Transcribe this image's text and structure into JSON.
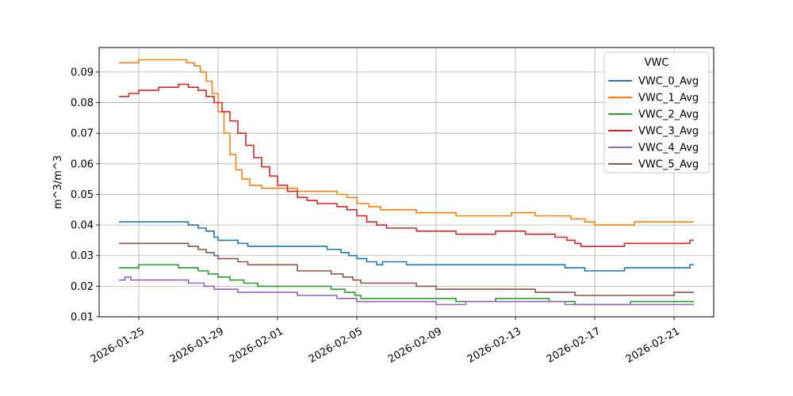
{
  "chart_data": {
    "type": "line",
    "title": "",
    "xlabel": "",
    "ylabel": "m^3/m^3",
    "xlim": [
      "2026-01-23",
      "2026-02-23"
    ],
    "ylim": [
      0.01,
      0.098
    ],
    "xticks": [
      "2026-01-25",
      "2026-01-29",
      "2026-02-01",
      "2026-02-05",
      "2026-02-09",
      "2026-02-13",
      "2026-02-17",
      "2026-02-21"
    ],
    "yticks": [
      0.01,
      0.02,
      0.03,
      0.04,
      0.05,
      0.06,
      0.07,
      0.08,
      0.09
    ],
    "ytick_labels": [
      "0.01",
      "0.02",
      "0.03",
      "0.04",
      "0.05",
      "0.06",
      "0.07",
      "0.08",
      "0.09"
    ],
    "grid": true,
    "legend": {
      "title": "VWC",
      "placement": "top-right"
    },
    "step": true,
    "series": [
      {
        "name": "VWC_0_Avg",
        "color": "#1f77b4",
        "points": [
          [
            "2026-01-24",
            0.041
          ],
          [
            "2026-01-27",
            0.041
          ],
          [
            "2026-01-27.5",
            0.04
          ],
          [
            "2026-01-28",
            0.039
          ],
          [
            "2026-01-28.4",
            0.038
          ],
          [
            "2026-01-28.8",
            0.036
          ],
          [
            "2026-01-29",
            0.035
          ],
          [
            "2026-01-30",
            0.034
          ],
          [
            "2026-01-30.5",
            0.033
          ],
          [
            "2026-02-03.5",
            0.032
          ],
          [
            "2026-02-04.2",
            0.031
          ],
          [
            "2026-02-04.6",
            0.03
          ],
          [
            "2026-02-05",
            0.029
          ],
          [
            "2026-02-05.5",
            0.028
          ],
          [
            "2026-02-06",
            0.027
          ],
          [
            "2026-02-06.3",
            0.028
          ],
          [
            "2026-02-07.5",
            0.027
          ],
          [
            "2026-02-15.5",
            0.026
          ],
          [
            "2026-02-16.5",
            0.025
          ],
          [
            "2026-02-18.5",
            0.026
          ],
          [
            "2026-02-21.8",
            0.027
          ],
          [
            "2026-02-22",
            0.027
          ]
        ]
      },
      {
        "name": "VWC_1_Avg",
        "color": "#ff7f0e",
        "points": [
          [
            "2026-01-24",
            0.093
          ],
          [
            "2026-01-25",
            0.094
          ],
          [
            "2026-01-27",
            0.094
          ],
          [
            "2026-01-27.4",
            0.093
          ],
          [
            "2026-01-27.8",
            0.092
          ],
          [
            "2026-01-28.1",
            0.09
          ],
          [
            "2026-01-28.4",
            0.087
          ],
          [
            "2026-01-28.7",
            0.083
          ],
          [
            "2026-01-29",
            0.077
          ],
          [
            "2026-01-29.3",
            0.07
          ],
          [
            "2026-01-29.6",
            0.063
          ],
          [
            "2026-01-29.9",
            0.058
          ],
          [
            "2026-01-30.2",
            0.055
          ],
          [
            "2026-01-30.6",
            0.053
          ],
          [
            "2026-01-31.2",
            0.052
          ],
          [
            "2026-02-02",
            0.051
          ],
          [
            "2026-02-04",
            0.05
          ],
          [
            "2026-02-04.5",
            0.049
          ],
          [
            "2026-02-05",
            0.047
          ],
          [
            "2026-02-05.6",
            0.046
          ],
          [
            "2026-02-06.2",
            0.045
          ],
          [
            "2026-02-08",
            0.044
          ],
          [
            "2026-02-10",
            0.043
          ],
          [
            "2026-02-12.8",
            0.044
          ],
          [
            "2026-02-14",
            0.043
          ],
          [
            "2026-02-15.8",
            0.042
          ],
          [
            "2026-02-16.5",
            0.041
          ],
          [
            "2026-02-17",
            0.04
          ],
          [
            "2026-02-19",
            0.041
          ],
          [
            "2026-02-22",
            0.041
          ]
        ]
      },
      {
        "name": "VWC_2_Avg",
        "color": "#2ca02c",
        "points": [
          [
            "2026-01-24",
            0.026
          ],
          [
            "2026-01-25",
            0.027
          ],
          [
            "2026-01-27",
            0.026
          ],
          [
            "2026-01-28",
            0.025
          ],
          [
            "2026-01-28.5",
            0.024
          ],
          [
            "2026-01-29",
            0.023
          ],
          [
            "2026-01-29.6",
            0.022
          ],
          [
            "2026-01-30.3",
            0.021
          ],
          [
            "2026-01-31",
            0.02
          ],
          [
            "2026-02-03.7",
            0.019
          ],
          [
            "2026-02-04.4",
            0.018
          ],
          [
            "2026-02-04.9",
            0.017
          ],
          [
            "2026-02-05.2",
            0.016
          ],
          [
            "2026-02-10",
            0.015
          ],
          [
            "2026-02-12",
            0.016
          ],
          [
            "2026-02-14.7",
            0.015
          ],
          [
            "2026-02-16",
            0.014
          ],
          [
            "2026-02-18.8",
            0.015
          ],
          [
            "2026-02-22",
            0.015
          ]
        ]
      },
      {
        "name": "VWC_3_Avg",
        "color": "#d62728",
        "points": [
          [
            "2026-01-24",
            0.082
          ],
          [
            "2026-01-24.5",
            0.083
          ],
          [
            "2026-01-25",
            0.084
          ],
          [
            "2026-01-26",
            0.085
          ],
          [
            "2026-01-27",
            0.086
          ],
          [
            "2026-01-27.5",
            0.085
          ],
          [
            "2026-01-28",
            0.084
          ],
          [
            "2026-01-28.4",
            0.082
          ],
          [
            "2026-01-28.8",
            0.08
          ],
          [
            "2026-01-29.2",
            0.077
          ],
          [
            "2026-01-29.6",
            0.074
          ],
          [
            "2026-01-30",
            0.07
          ],
          [
            "2026-01-30.4",
            0.066
          ],
          [
            "2026-01-30.8",
            0.062
          ],
          [
            "2026-01-31.2",
            0.059
          ],
          [
            "2026-01-31.6",
            0.056
          ],
          [
            "2026-02-01",
            0.053
          ],
          [
            "2026-02-01.5",
            0.051
          ],
          [
            "2026-02-02",
            0.049
          ],
          [
            "2026-02-02.5",
            0.048
          ],
          [
            "2026-02-03",
            0.047
          ],
          [
            "2026-02-04",
            0.046
          ],
          [
            "2026-02-04.5",
            0.045
          ],
          [
            "2026-02-05",
            0.043
          ],
          [
            "2026-02-05.5",
            0.041
          ],
          [
            "2026-02-06",
            0.04
          ],
          [
            "2026-02-06.5",
            0.039
          ],
          [
            "2026-02-08",
            0.038
          ],
          [
            "2026-02-10",
            0.037
          ],
          [
            "2026-02-12",
            0.038
          ],
          [
            "2026-02-13.5",
            0.037
          ],
          [
            "2026-02-15",
            0.036
          ],
          [
            "2026-02-15.6",
            0.035
          ],
          [
            "2026-02-16",
            0.034
          ],
          [
            "2026-02-16.3",
            0.033
          ],
          [
            "2026-02-18.5",
            0.034
          ],
          [
            "2026-02-21.8",
            0.035
          ],
          [
            "2026-02-22",
            0.035
          ]
        ]
      },
      {
        "name": "VWC_4_Avg",
        "color": "#9467bd",
        "points": [
          [
            "2026-01-24",
            0.022
          ],
          [
            "2026-01-24.3",
            0.023
          ],
          [
            "2026-01-24.6",
            0.022
          ],
          [
            "2026-01-27.5",
            0.021
          ],
          [
            "2026-01-28.3",
            0.02
          ],
          [
            "2026-01-28.8",
            0.019
          ],
          [
            "2026-01-30",
            0.018
          ],
          [
            "2026-02-02",
            0.017
          ],
          [
            "2026-02-04",
            0.016
          ],
          [
            "2026-02-05",
            0.015
          ],
          [
            "2026-02-09",
            0.014
          ],
          [
            "2026-02-10.5",
            0.015
          ],
          [
            "2026-02-15.5",
            0.014
          ],
          [
            "2026-02-22",
            0.014
          ]
        ]
      },
      {
        "name": "VWC_5_Avg",
        "color": "#8c564b",
        "points": [
          [
            "2026-01-24",
            0.034
          ],
          [
            "2026-01-27.5",
            0.033
          ],
          [
            "2026-01-28",
            0.032
          ],
          [
            "2026-01-28.4",
            0.031
          ],
          [
            "2026-01-28.8",
            0.03
          ],
          [
            "2026-01-29",
            0.029
          ],
          [
            "2026-01-30",
            0.028
          ],
          [
            "2026-01-30.5",
            0.027
          ],
          [
            "2026-02-02",
            0.025
          ],
          [
            "2026-02-03.7",
            0.024
          ],
          [
            "2026-02-04.3",
            0.023
          ],
          [
            "2026-02-04.8",
            0.022
          ],
          [
            "2026-02-05.2",
            0.021
          ],
          [
            "2026-02-08",
            0.02
          ],
          [
            "2026-02-09",
            0.019
          ],
          [
            "2026-02-14",
            0.018
          ],
          [
            "2026-02-16",
            0.017
          ],
          [
            "2026-02-21",
            0.018
          ],
          [
            "2026-02-22",
            0.018
          ]
        ]
      }
    ]
  }
}
